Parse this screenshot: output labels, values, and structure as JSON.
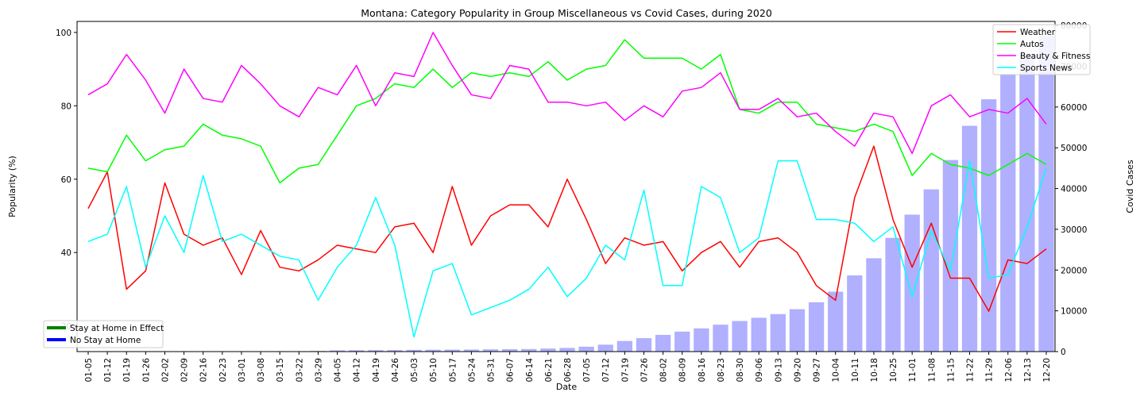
{
  "chart_data": {
    "type": "line",
    "title": "Montana: Category Popularity in Group Miscellaneous vs Covid Cases, during 2020",
    "xlabel": "Date",
    "ylabel": "Popularity (%)",
    "y2label": "Covid Cases",
    "ylim": [
      13,
      103
    ],
    "y2lim": [
      0,
      81000
    ],
    "yticks": [
      20,
      40,
      60,
      80,
      100
    ],
    "y2ticks": [
      0,
      10000,
      20000,
      30000,
      40000,
      50000,
      60000,
      70000,
      80000
    ],
    "categories": [
      "01-05",
      "01-12",
      "01-19",
      "01-26",
      "02-02",
      "02-09",
      "02-16",
      "02-23",
      "03-01",
      "03-08",
      "03-15",
      "03-22",
      "03-29",
      "04-05",
      "04-12",
      "04-19",
      "04-26",
      "05-03",
      "05-10",
      "05-17",
      "05-24",
      "05-31",
      "06-07",
      "06-14",
      "06-21",
      "06-28",
      "07-05",
      "07-12",
      "07-19",
      "07-26",
      "08-02",
      "08-09",
      "08-16",
      "08-23",
      "08-30",
      "09-06",
      "09-13",
      "09-20",
      "09-27",
      "10-04",
      "10-11",
      "10-18",
      "10-25",
      "11-01",
      "11-08",
      "11-15",
      "11-22",
      "11-29",
      "12-06",
      "12-13",
      "12-20"
    ],
    "series": [
      {
        "name": "Weather",
        "color": "#ff0000",
        "values": [
          52,
          62,
          30,
          35,
          59,
          45,
          42,
          44,
          34,
          46,
          36,
          35,
          38,
          42,
          41,
          40,
          47,
          48,
          40,
          58,
          42,
          50,
          53,
          53,
          47,
          60,
          49,
          37,
          44,
          42,
          43,
          35,
          40,
          43,
          36,
          43,
          44,
          40,
          31,
          27,
          55,
          69,
          49,
          36,
          48,
          33,
          33,
          24,
          38,
          37,
          41
        ]
      },
      {
        "name": "Autos",
        "color": "#00ff00",
        "values": [
          63,
          62,
          72,
          65,
          68,
          69,
          75,
          72,
          71,
          69,
          59,
          63,
          64,
          72,
          80,
          82,
          86,
          85,
          90,
          85,
          89,
          88,
          89,
          88,
          92,
          87,
          90,
          91,
          98,
          93,
          93,
          93,
          90,
          94,
          79,
          78,
          81,
          81,
          75,
          74,
          73,
          75,
          73,
          61,
          67,
          64,
          63,
          61,
          64,
          67,
          64
        ]
      },
      {
        "name": "Beauty & Fitness",
        "color": "#ff00ff",
        "values": [
          83,
          86,
          94,
          87,
          78,
          90,
          82,
          81,
          91,
          86,
          80,
          77,
          85,
          83,
          91,
          80,
          89,
          88,
          100,
          91,
          83,
          82,
          91,
          90,
          81,
          81,
          80,
          81,
          76,
          80,
          77,
          84,
          85,
          89,
          79,
          79,
          82,
          77,
          78,
          73,
          69,
          78,
          77,
          67,
          80,
          83,
          77,
          79,
          78,
          82,
          75
        ]
      },
      {
        "name": "Sports News",
        "color": "#00ffff",
        "values": [
          43,
          45,
          58,
          36,
          50,
          40,
          61,
          43,
          45,
          42,
          39,
          38,
          27,
          36,
          42,
          55,
          42,
          17,
          35,
          37,
          23,
          25,
          27,
          30,
          36,
          28,
          33,
          42,
          38,
          57,
          31,
          31,
          58,
          55,
          40,
          44,
          65,
          65,
          49,
          49,
          48,
          43,
          47,
          28,
          46,
          35,
          65,
          33,
          34,
          47,
          63
        ]
      }
    ],
    "bars": {
      "name": "Covid Cases",
      "color": "#b0b0ff",
      "values": [
        0,
        0,
        0,
        0,
        0,
        0,
        0,
        0,
        0,
        0,
        0,
        0,
        150,
        300,
        330,
        350,
        370,
        420,
        450,
        480,
        500,
        550,
        580,
        620,
        750,
        900,
        1200,
        1700,
        2600,
        3300,
        4100,
        4900,
        5700,
        6600,
        7500,
        8300,
        9200,
        10400,
        12100,
        14700,
        18700,
        22900,
        27900,
        33600,
        39800,
        47000,
        55400,
        61900,
        67900,
        73000,
        77400
      ]
    },
    "legend_series": [
      "Weather",
      "Autos",
      "Beauty & Fitness",
      "Sports News"
    ],
    "legend_series_position": "top-right",
    "legend_status": [
      {
        "label": "Stay at Home in Effect",
        "color": "#008000"
      },
      {
        "label": "No Stay at Home",
        "color": "#0000ff"
      }
    ],
    "legend_status_position": "bottom-left",
    "grid": false
  }
}
